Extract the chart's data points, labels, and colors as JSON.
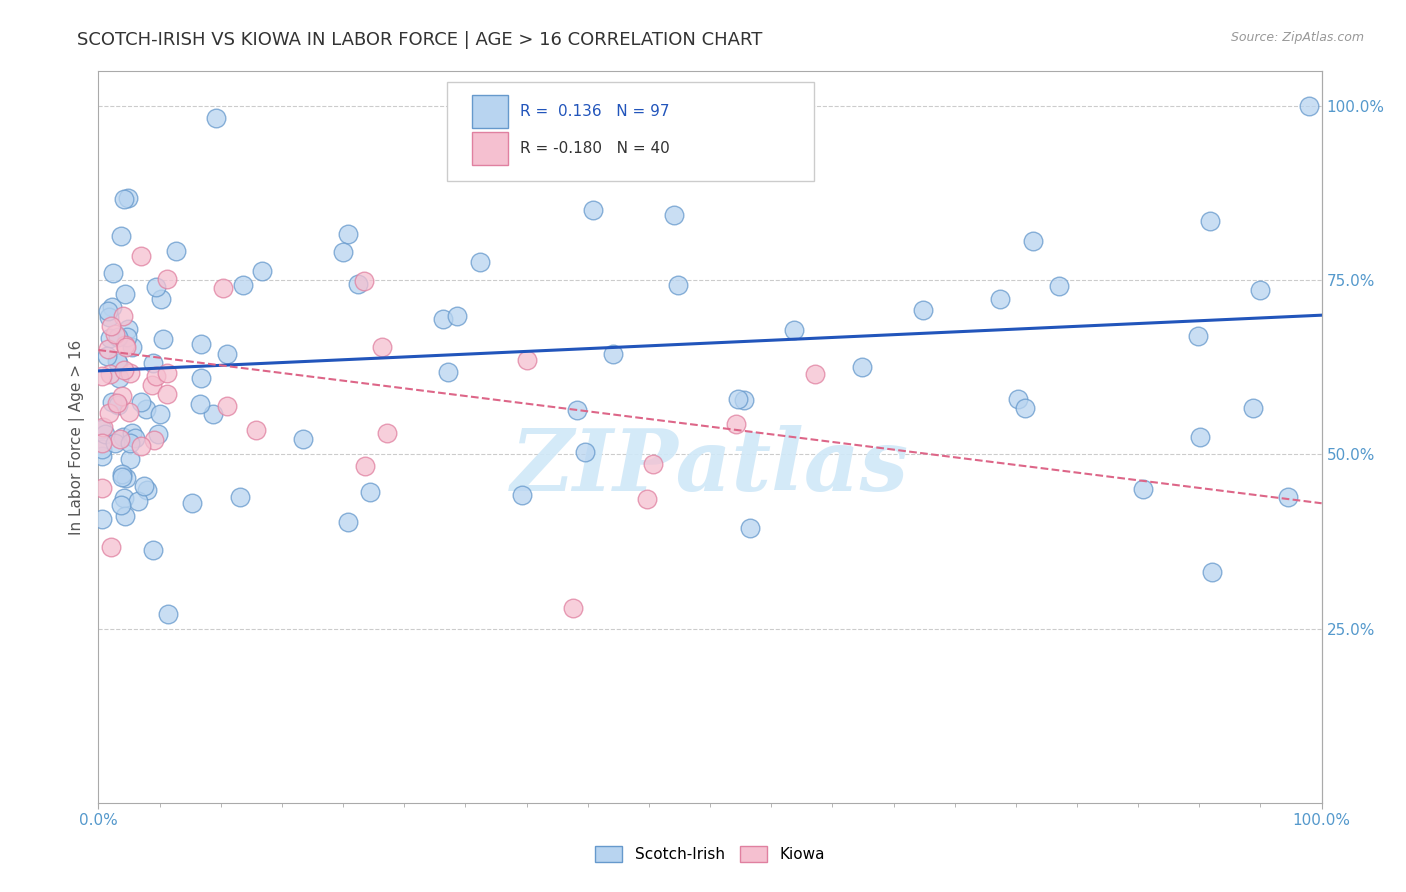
{
  "title": "SCOTCH-IRISH VS KIOWA IN LABOR FORCE | AGE > 16 CORRELATION CHART",
  "source_text": "Source: ZipAtlas.com",
  "ylabel": "In Labor Force | Age > 16",
  "xlim": [
    0.0,
    1.0
  ],
  "ylim": [
    0.0,
    1.05
  ],
  "scotch_irish_R": 0.136,
  "scotch_irish_N": 97,
  "kiowa_R": -0.18,
  "kiowa_N": 40,
  "scotch_irish_color": "#b8d4f0",
  "scotch_irish_edge": "#6699cc",
  "kiowa_color": "#f5c0d0",
  "kiowa_edge": "#e080a0",
  "trend_blue": "#2255bb",
  "trend_pink": "#dd6688",
  "watermark_color": "#d0e8f8",
  "background_color": "#ffffff",
  "grid_color": "#cccccc",
  "title_color": "#333333",
  "axis_color": "#5599cc",
  "right_label_color": "#5599cc"
}
